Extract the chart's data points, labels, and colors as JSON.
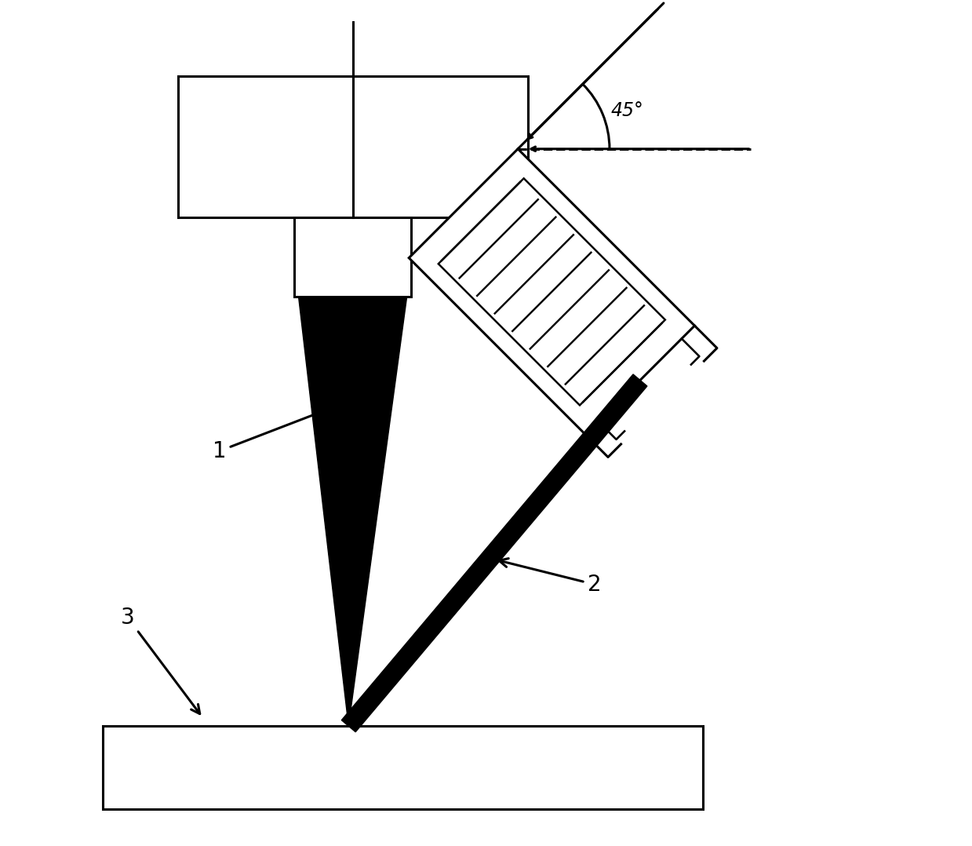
{
  "bg_color": "#ffffff",
  "line_color": "#000000",
  "figsize": [
    12.39,
    10.78
  ],
  "dpi": 100,
  "angle_label": "45°",
  "labels": [
    "1",
    "2",
    "3"
  ]
}
